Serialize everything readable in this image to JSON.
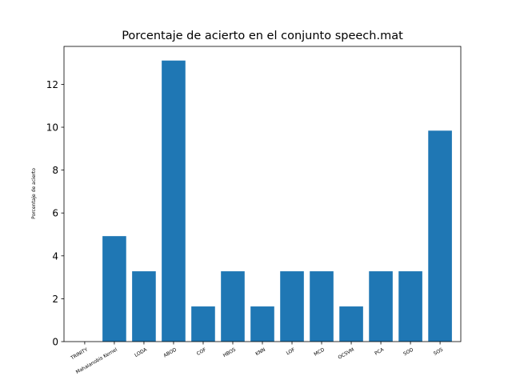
{
  "chart_data": {
    "type": "bar",
    "title": "Porcentaje de acierto en el conjunto speech.mat",
    "xlabel": "",
    "ylabel": "Porcentaje de acierto",
    "categories": [
      "TRINITY",
      "Mahalanobis Kernel",
      "LODA",
      "ABOD",
      "COF",
      "HBOS",
      "KNN",
      "LOF",
      "MCD",
      "OCSVM",
      "PCA",
      "SOD",
      "SOS"
    ],
    "values": [
      0,
      4.92,
      3.28,
      13.11,
      1.64,
      3.28,
      1.64,
      3.28,
      3.28,
      1.64,
      3.28,
      3.28,
      9.84
    ],
    "ylim": [
      0,
      13.77
    ],
    "yticks": [
      0,
      2,
      4,
      6,
      8,
      10,
      12
    ],
    "bar_color": "#1f77b4",
    "grid": false,
    "legend": "none"
  }
}
